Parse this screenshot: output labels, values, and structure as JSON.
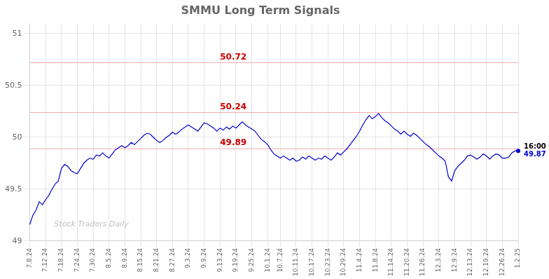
{
  "chart_data": {
    "type": "line",
    "title": "SMMU Long Term Signals",
    "categories": [
      "7.8.24",
      null,
      null,
      null,
      null,
      "7.12.24",
      null,
      null,
      null,
      null,
      "7.18.24",
      null,
      null,
      null,
      null,
      "7.24.24",
      null,
      null,
      null,
      null,
      "7.30.24",
      null,
      null,
      null,
      null,
      "8.5.24",
      null,
      null,
      null,
      null,
      "8.9.24",
      null,
      null,
      null,
      null,
      "8.15.24",
      null,
      null,
      null,
      null,
      "8.21.24",
      null,
      null,
      null,
      null,
      "8.27.24",
      null,
      null,
      null,
      null,
      "9.3.24",
      null,
      null,
      null,
      null,
      "9.9.24",
      null,
      null,
      null,
      null,
      "9.13.24",
      null,
      null,
      null,
      null,
      "9.19.24",
      null,
      null,
      null,
      null,
      "9.25.24",
      null,
      null,
      null,
      null,
      "10.1.24",
      null,
      null,
      null,
      "10.7.24",
      null,
      null,
      null,
      null,
      "10.11.24",
      null,
      null,
      null,
      null,
      "10.17.24",
      null,
      null,
      null,
      null,
      "10.23.24",
      null,
      null,
      null,
      null,
      "10.29.24",
      null,
      null,
      null,
      null,
      "11.4.24",
      null,
      null,
      null,
      null,
      "11.8.24",
      null,
      null,
      null,
      null,
      "11.14.24",
      null,
      null,
      null,
      null,
      "11.20.24",
      null,
      null,
      null,
      null,
      "11.26.24",
      null,
      null,
      null,
      null,
      "12.3.24",
      null,
      null,
      null,
      null,
      "12.9.24",
      null,
      null,
      null,
      null,
      "12.13.24",
      null,
      null,
      null,
      null,
      "12.19.24",
      null,
      null,
      null,
      null,
      "12.26.24",
      null,
      null,
      null,
      null,
      "1.2.25"
    ],
    "values": [
      49.16,
      49.25,
      49.3,
      49.38,
      49.35,
      49.4,
      49.44,
      49.5,
      49.55,
      49.58,
      49.7,
      49.74,
      49.72,
      49.68,
      49.66,
      49.65,
      49.7,
      49.75,
      49.78,
      49.8,
      49.79,
      49.83,
      49.82,
      49.85,
      49.82,
      49.8,
      49.84,
      49.88,
      49.9,
      49.92,
      49.9,
      49.92,
      49.95,
      49.93,
      49.96,
      49.99,
      50.02,
      50.04,
      50.03,
      50.0,
      49.97,
      49.95,
      49.97,
      50.0,
      50.02,
      50.05,
      50.03,
      50.05,
      50.08,
      50.1,
      50.12,
      50.1,
      50.08,
      50.06,
      50.1,
      50.14,
      50.13,
      50.11,
      50.09,
      50.06,
      50.09,
      50.07,
      50.1,
      50.08,
      50.11,
      50.09,
      50.12,
      50.15,
      50.12,
      50.1,
      50.08,
      50.06,
      50.02,
      49.98,
      49.96,
      49.93,
      49.88,
      49.84,
      49.82,
      49.8,
      49.82,
      49.8,
      49.78,
      49.8,
      49.77,
      49.78,
      49.81,
      49.79,
      49.82,
      49.8,
      49.78,
      49.8,
      49.79,
      49.82,
      49.8,
      49.78,
      49.81,
      49.85,
      49.83,
      49.86,
      49.89,
      49.93,
      49.97,
      50.01,
      50.06,
      50.12,
      50.17,
      50.21,
      50.18,
      50.2,
      50.23,
      50.19,
      50.16,
      50.14,
      50.11,
      50.08,
      50.06,
      50.03,
      50.06,
      50.03,
      50.01,
      50.04,
      50.02,
      49.99,
      49.96,
      49.93,
      49.91,
      49.88,
      49.85,
      49.82,
      49.8,
      49.77,
      49.62,
      49.58,
      49.68,
      49.72,
      49.75,
      49.78,
      49.82,
      49.83,
      49.81,
      49.79,
      49.81,
      49.84,
      49.82,
      49.79,
      49.82,
      49.84,
      49.83,
      49.8,
      49.8,
      49.81,
      49.85,
      49.87,
      49.87
    ],
    "color": "#0000CC",
    "ylim": [
      49.0,
      51.1
    ],
    "yticks": [
      49,
      49.5,
      50,
      50.5,
      51
    ],
    "grid": true,
    "hlines": [
      {
        "y": 50.72,
        "color": "#F4AAAA"
      },
      {
        "y": 50.24,
        "color": "#F4AAAA"
      },
      {
        "y": 49.89,
        "color": "#F4AAAA"
      }
    ],
    "annotations": [
      {
        "text": "50.72",
        "x": "9.13.24",
        "y": 50.72,
        "color": "#CC0000"
      },
      {
        "text": "50.24",
        "x": "9.13.24",
        "y": 50.24,
        "color": "#CC0000"
      },
      {
        "text": "49.89",
        "x": "9.13.24",
        "y": 49.89,
        "color": "#CC0000"
      }
    ],
    "end_annotations": [
      {
        "text": "16:00",
        "color": "#000000"
      },
      {
        "text": "49.87",
        "color": "#0000CC"
      }
    ],
    "watermark": {
      "text": "Stock Traders Daily",
      "color": "#C0C0C0"
    }
  }
}
